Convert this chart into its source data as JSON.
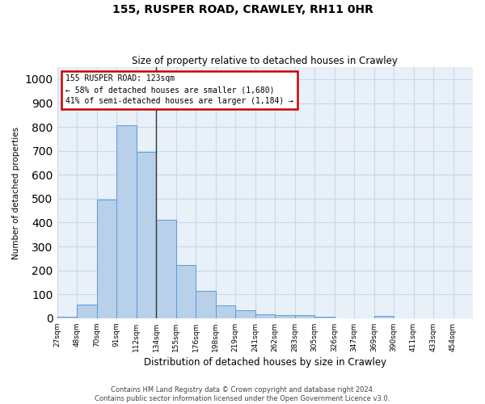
{
  "title": "155, RUSPER ROAD, CRAWLEY, RH11 0HR",
  "subtitle": "Size of property relative to detached houses in Crawley",
  "xlabel": "Distribution of detached houses by size in Crawley",
  "ylabel": "Number of detached properties",
  "footer_line1": "Contains HM Land Registry data © Crown copyright and database right 2024.",
  "footer_line2": "Contains public sector information licensed under the Open Government Licence v3.0.",
  "bin_labels": [
    "27sqm",
    "48sqm",
    "70sqm",
    "91sqm",
    "112sqm",
    "134sqm",
    "155sqm",
    "176sqm",
    "198sqm",
    "219sqm",
    "241sqm",
    "262sqm",
    "283sqm",
    "305sqm",
    "326sqm",
    "347sqm",
    "369sqm",
    "390sqm",
    "411sqm",
    "433sqm",
    "454sqm"
  ],
  "bar_values": [
    5,
    58,
    495,
    808,
    695,
    412,
    223,
    113,
    52,
    32,
    15,
    13,
    12,
    7,
    0,
    0,
    10,
    0,
    0,
    0,
    0
  ],
  "bar_color": "#b8d0ea",
  "bar_edge_color": "#5b9bd5",
  "grid_color": "#c8d8ee",
  "background_color": "#e8f0f8",
  "vline_x_index": 4,
  "vline_color": "#333333",
  "annotation_line1": "155 RUSPER ROAD: 123sqm",
  "annotation_line2": "← 58% of detached houses are smaller (1,680)",
  "annotation_line3": "41% of semi-detached houses are larger (1,184) →",
  "annotation_box_color": "#cc0000",
  "ylim": [
    0,
    1050
  ],
  "yticks": [
    0,
    100,
    200,
    300,
    400,
    500,
    600,
    700,
    800,
    900,
    1000
  ]
}
